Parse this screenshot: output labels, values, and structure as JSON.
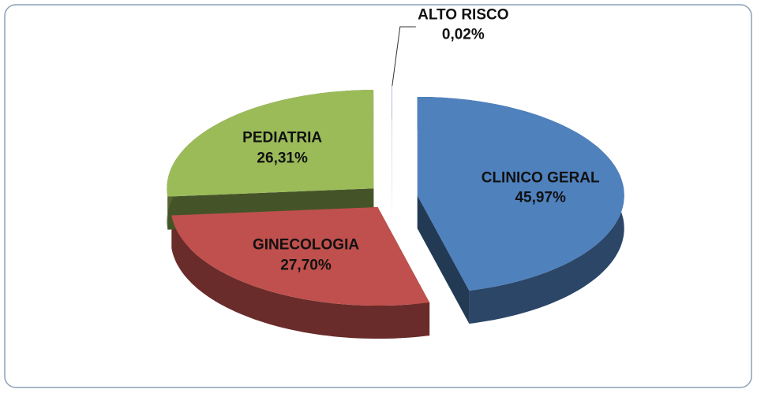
{
  "chart_data": {
    "type": "pie3d",
    "categories": [
      "CLINICO GERAL",
      "GINECOLOGIA",
      "PEDIATRIA",
      "PEDIATRIA ALTO RISCO"
    ],
    "values": [
      45.97,
      27.7,
      26.31,
      0.02
    ],
    "value_labels": [
      "45,97%",
      "27,70%",
      "26,31%",
      "0,02%"
    ],
    "colors": [
      "#4f81bd",
      "#c0504d",
      "#9bbb59",
      "#8064a2"
    ]
  }
}
